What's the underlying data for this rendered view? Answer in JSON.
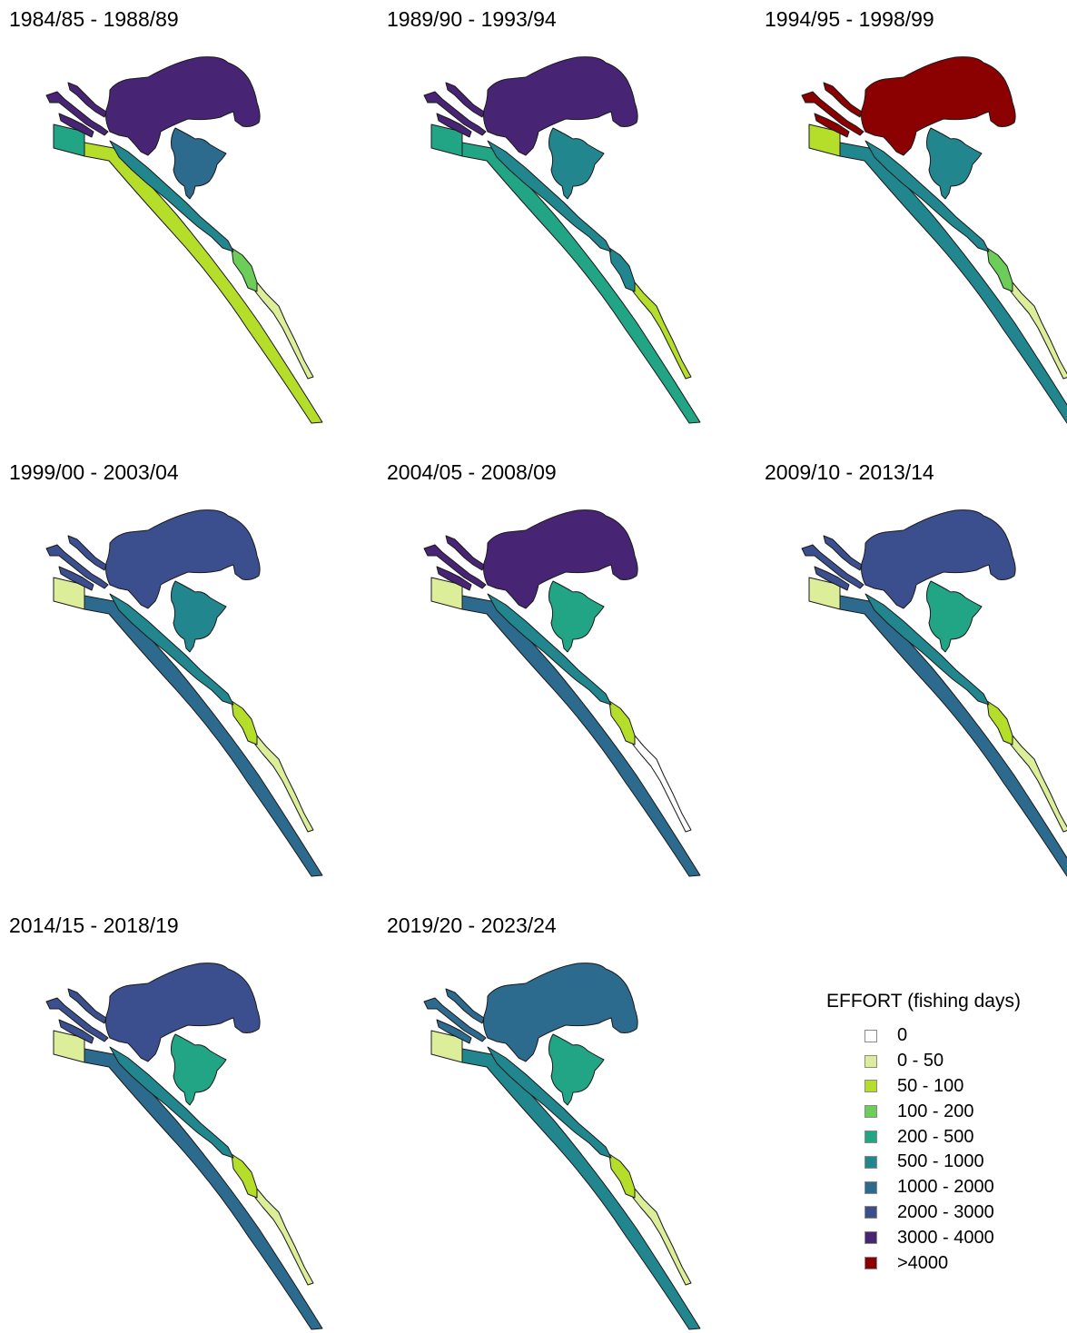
{
  "legend": {
    "title": "EFFORT (fishing days)",
    "classes": [
      {
        "label": "0",
        "color": "#ffffff"
      },
      {
        "label": "0 - 50",
        "color": "#dcee9a"
      },
      {
        "label": "50 - 100",
        "color": "#b5de2b"
      },
      {
        "label": "100 - 200",
        "color": "#6dcd59"
      },
      {
        "label": "200 - 500",
        "color": "#22a584"
      },
      {
        "label": "500 - 1000",
        "color": "#21868d"
      },
      {
        "label": "1000 - 2000",
        "color": "#2c6a8e"
      },
      {
        "label": "2000 - 3000",
        "color": "#3b4f8e"
      },
      {
        "label": "3000 - 4000",
        "color": "#482474"
      },
      {
        "label": ">4000",
        "color": "#8b0000"
      }
    ]
  },
  "panels": [
    {
      "title": "1984/85 - 1988/89",
      "fill_class": {
        "large_lake": "3000 - 4000",
        "east_lake": "1000 - 2000",
        "tributaries": "3000 - 4000",
        "inner_channel_north": "500 - 1000",
        "inner_channel_mid": "100 - 200",
        "inner_channel_south": "0 - 50",
        "ocean_nw_box": "200 - 500",
        "ocean_strip": "50 - 100"
      }
    },
    {
      "title": "1989/90 - 1993/94",
      "fill_class": {
        "large_lake": "3000 - 4000",
        "east_lake": "500 - 1000",
        "tributaries": "3000 - 4000",
        "inner_channel_north": "500 - 1000",
        "inner_channel_mid": "500 - 1000",
        "inner_channel_south": "50 - 100",
        "ocean_nw_box": "200 - 500",
        "ocean_strip": "200 - 500"
      }
    },
    {
      "title": "1994/95 - 1998/99",
      "fill_class": {
        "large_lake": ">4000",
        "east_lake": "500 - 1000",
        "tributaries": ">4000",
        "inner_channel_north": "500 - 1000",
        "inner_channel_mid": "100 - 200",
        "inner_channel_south": "0 - 50",
        "ocean_nw_box": "50 - 100",
        "ocean_strip": "500 - 1000"
      }
    },
    {
      "title": "1999/00 - 2003/04",
      "fill_class": {
        "large_lake": "2000 - 3000",
        "east_lake": "500 - 1000",
        "tributaries": "2000 - 3000",
        "inner_channel_north": "500 - 1000",
        "inner_channel_mid": "50 - 100",
        "inner_channel_south": "0 - 50",
        "ocean_nw_box": "0 - 50",
        "ocean_strip": "1000 - 2000"
      }
    },
    {
      "title": "2004/05 - 2008/09",
      "fill_class": {
        "large_lake": "3000 - 4000",
        "east_lake": "200 - 500",
        "tributaries": "3000 - 4000",
        "inner_channel_north": "500 - 1000",
        "inner_channel_mid": "50 - 100",
        "inner_channel_south": "0",
        "ocean_nw_box": "0 - 50",
        "ocean_strip": "1000 - 2000"
      }
    },
    {
      "title": "2009/10 - 2013/14",
      "fill_class": {
        "large_lake": "2000 - 3000",
        "east_lake": "200 - 500",
        "tributaries": "2000 - 3000",
        "inner_channel_north": "500 - 1000",
        "inner_channel_mid": "50 - 100",
        "inner_channel_south": "0 - 50",
        "ocean_nw_box": "0 - 50",
        "ocean_strip": "1000 - 2000"
      }
    },
    {
      "title": "2014/15 - 2018/19",
      "fill_class": {
        "large_lake": "2000 - 3000",
        "east_lake": "200 - 500",
        "tributaries": "2000 - 3000",
        "inner_channel_north": "500 - 1000",
        "inner_channel_mid": "50 - 100",
        "inner_channel_south": "0 - 50",
        "ocean_nw_box": "0 - 50",
        "ocean_strip": "1000 - 2000"
      }
    },
    {
      "title": "2019/20 - 2023/24",
      "fill_class": {
        "large_lake": "1000 - 2000",
        "east_lake": "200 - 500",
        "tributaries": "1000 - 2000",
        "inner_channel_north": "500 - 1000",
        "inner_channel_mid": "50 - 100",
        "inner_channel_south": "0 - 50",
        "ocean_nw_box": "0 - 50",
        "ocean_strip": "500 - 1000"
      }
    }
  ]
}
